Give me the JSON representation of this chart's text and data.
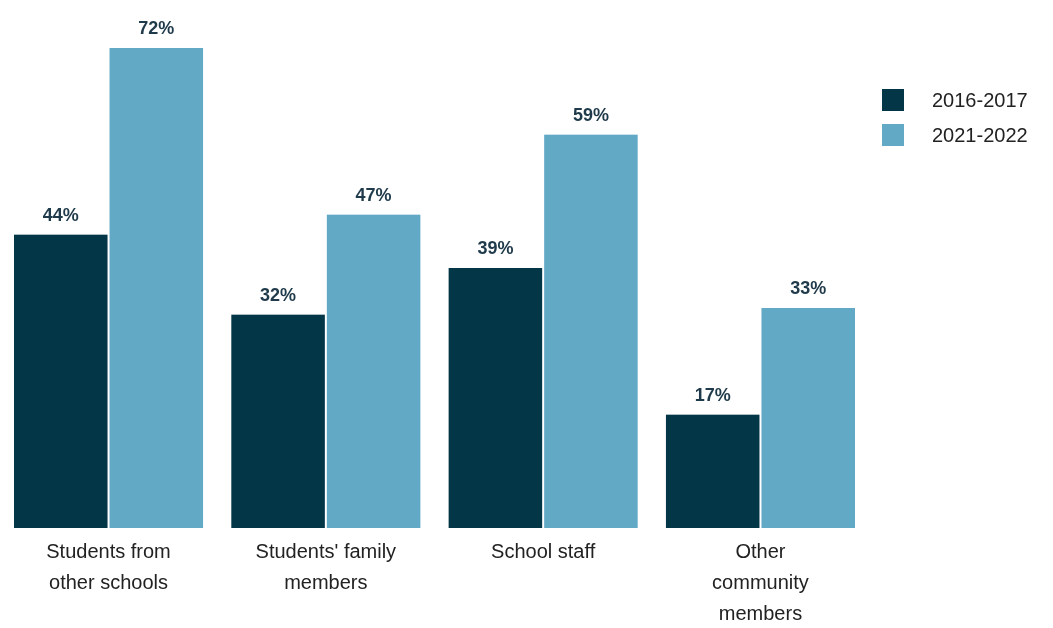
{
  "chart_data": {
    "type": "bar",
    "categories": [
      "Students from\nother schools",
      "Students' family\nmembers",
      "School staff",
      "Other\ncommunity\nmembers"
    ],
    "series": [
      {
        "name": "2016-2017",
        "color": "#033647",
        "values": [
          44,
          32,
          39,
          17
        ],
        "value_labels": [
          "44%",
          "32%",
          "39%",
          "17%"
        ]
      },
      {
        "name": "2021-2022",
        "color": "#62a9c6",
        "values": [
          72,
          47,
          59,
          33
        ],
        "value_labels": [
          "72%",
          "47%",
          "59%",
          "33%"
        ]
      }
    ],
    "legend": "top right"
  }
}
